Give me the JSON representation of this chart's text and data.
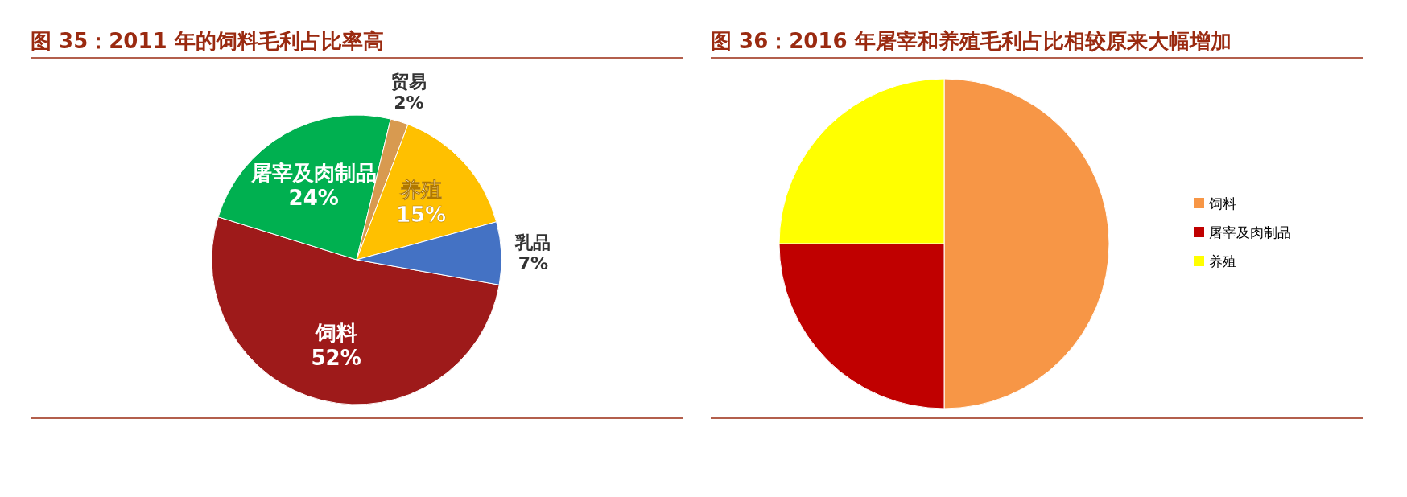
{
  "chart_data": [
    {
      "type": "pie",
      "title": "图 35：2011 年的饲料毛利占比率高",
      "categories": [
        "饲料",
        "屠宰及肉制品",
        "贸易",
        "养殖",
        "乳品"
      ],
      "values": [
        52,
        24,
        2,
        15,
        7
      ],
      "value_labels": [
        "52%",
        "24%",
        "2%",
        "15%",
        "7%"
      ],
      "colors": [
        "#9e1a1a",
        "#00b050",
        "#d89a50",
        "#ffc000",
        "#4472c4"
      ],
      "legend": false
    },
    {
      "type": "pie",
      "title": "图 36：2016 年屠宰和养殖毛利占比相较原来大幅增加",
      "categories": [
        "饲料",
        "屠宰及肉制品",
        "养殖"
      ],
      "values": [
        50,
        25,
        25
      ],
      "colors": [
        "#f79646",
        "#c00000",
        "#ffff00"
      ],
      "legend": "right"
    }
  ]
}
